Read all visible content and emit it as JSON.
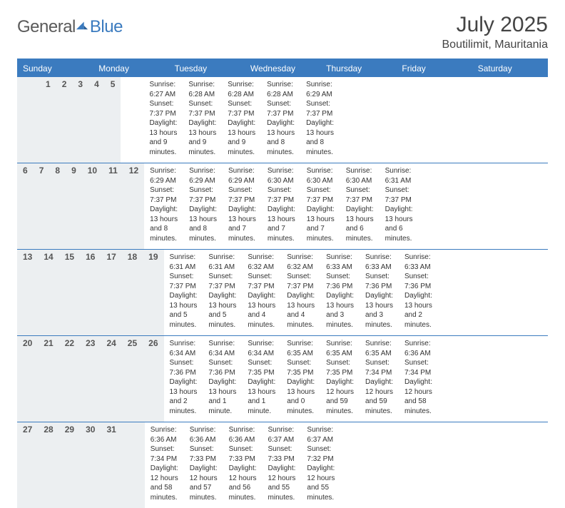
{
  "brand": {
    "part1": "General",
    "part2": "Blue"
  },
  "header": {
    "title": "July 2025",
    "location": "Boutilimit, Mauritania"
  },
  "colors": {
    "accent": "#3b7bbf",
    "header_bg": "#3b7bbf",
    "daynum_bg": "#eceff1",
    "text": "#333333",
    "logo_gray": "#5a5a5a"
  },
  "weekdays": [
    "Sunday",
    "Monday",
    "Tuesday",
    "Wednesday",
    "Thursday",
    "Friday",
    "Saturday"
  ],
  "weeks": [
    {
      "days": [
        null,
        null,
        {
          "n": "1",
          "sunrise": "6:27 AM",
          "sunset": "7:37 PM",
          "daylight": "13 hours and 9 minutes."
        },
        {
          "n": "2",
          "sunrise": "6:28 AM",
          "sunset": "7:37 PM",
          "daylight": "13 hours and 9 minutes."
        },
        {
          "n": "3",
          "sunrise": "6:28 AM",
          "sunset": "7:37 PM",
          "daylight": "13 hours and 9 minutes."
        },
        {
          "n": "4",
          "sunrise": "6:28 AM",
          "sunset": "7:37 PM",
          "daylight": "13 hours and 8 minutes."
        },
        {
          "n": "5",
          "sunrise": "6:29 AM",
          "sunset": "7:37 PM",
          "daylight": "13 hours and 8 minutes."
        }
      ]
    },
    {
      "days": [
        {
          "n": "6",
          "sunrise": "6:29 AM",
          "sunset": "7:37 PM",
          "daylight": "13 hours and 8 minutes."
        },
        {
          "n": "7",
          "sunrise": "6:29 AM",
          "sunset": "7:37 PM",
          "daylight": "13 hours and 8 minutes."
        },
        {
          "n": "8",
          "sunrise": "6:29 AM",
          "sunset": "7:37 PM",
          "daylight": "13 hours and 7 minutes."
        },
        {
          "n": "9",
          "sunrise": "6:30 AM",
          "sunset": "7:37 PM",
          "daylight": "13 hours and 7 minutes."
        },
        {
          "n": "10",
          "sunrise": "6:30 AM",
          "sunset": "7:37 PM",
          "daylight": "13 hours and 7 minutes."
        },
        {
          "n": "11",
          "sunrise": "6:30 AM",
          "sunset": "7:37 PM",
          "daylight": "13 hours and 6 minutes."
        },
        {
          "n": "12",
          "sunrise": "6:31 AM",
          "sunset": "7:37 PM",
          "daylight": "13 hours and 6 minutes."
        }
      ]
    },
    {
      "days": [
        {
          "n": "13",
          "sunrise": "6:31 AM",
          "sunset": "7:37 PM",
          "daylight": "13 hours and 5 minutes."
        },
        {
          "n": "14",
          "sunrise": "6:31 AM",
          "sunset": "7:37 PM",
          "daylight": "13 hours and 5 minutes."
        },
        {
          "n": "15",
          "sunrise": "6:32 AM",
          "sunset": "7:37 PM",
          "daylight": "13 hours and 4 minutes."
        },
        {
          "n": "16",
          "sunrise": "6:32 AM",
          "sunset": "7:37 PM",
          "daylight": "13 hours and 4 minutes."
        },
        {
          "n": "17",
          "sunrise": "6:33 AM",
          "sunset": "7:36 PM",
          "daylight": "13 hours and 3 minutes."
        },
        {
          "n": "18",
          "sunrise": "6:33 AM",
          "sunset": "7:36 PM",
          "daylight": "13 hours and 3 minutes."
        },
        {
          "n": "19",
          "sunrise": "6:33 AM",
          "sunset": "7:36 PM",
          "daylight": "13 hours and 2 minutes."
        }
      ]
    },
    {
      "days": [
        {
          "n": "20",
          "sunrise": "6:34 AM",
          "sunset": "7:36 PM",
          "daylight": "13 hours and 2 minutes."
        },
        {
          "n": "21",
          "sunrise": "6:34 AM",
          "sunset": "7:36 PM",
          "daylight": "13 hours and 1 minute."
        },
        {
          "n": "22",
          "sunrise": "6:34 AM",
          "sunset": "7:35 PM",
          "daylight": "13 hours and 1 minute."
        },
        {
          "n": "23",
          "sunrise": "6:35 AM",
          "sunset": "7:35 PM",
          "daylight": "13 hours and 0 minutes."
        },
        {
          "n": "24",
          "sunrise": "6:35 AM",
          "sunset": "7:35 PM",
          "daylight": "12 hours and 59 minutes."
        },
        {
          "n": "25",
          "sunrise": "6:35 AM",
          "sunset": "7:34 PM",
          "daylight": "12 hours and 59 minutes."
        },
        {
          "n": "26",
          "sunrise": "6:36 AM",
          "sunset": "7:34 PM",
          "daylight": "12 hours and 58 minutes."
        }
      ]
    },
    {
      "days": [
        {
          "n": "27",
          "sunrise": "6:36 AM",
          "sunset": "7:34 PM",
          "daylight": "12 hours and 58 minutes."
        },
        {
          "n": "28",
          "sunrise": "6:36 AM",
          "sunset": "7:33 PM",
          "daylight": "12 hours and 57 minutes."
        },
        {
          "n": "29",
          "sunrise": "6:36 AM",
          "sunset": "7:33 PM",
          "daylight": "12 hours and 56 minutes."
        },
        {
          "n": "30",
          "sunrise": "6:37 AM",
          "sunset": "7:33 PM",
          "daylight": "12 hours and 55 minutes."
        },
        {
          "n": "31",
          "sunrise": "6:37 AM",
          "sunset": "7:32 PM",
          "daylight": "12 hours and 55 minutes."
        },
        null,
        null
      ]
    }
  ],
  "labels": {
    "sunrise": "Sunrise:",
    "sunset": "Sunset:",
    "daylight": "Daylight:"
  }
}
